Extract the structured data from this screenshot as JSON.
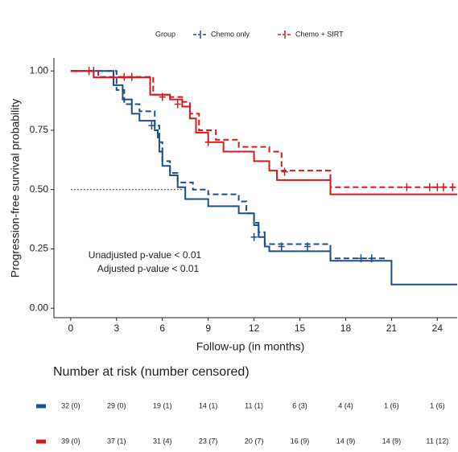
{
  "chart_data": {
    "type": "km",
    "xlabel": "Follow-up (in months)",
    "ylabel": "Progression-free survival probability",
    "legend_title": "Group",
    "xlim": [
      -1.1,
      25.3
    ],
    "ylim": [
      -0.04,
      1.055
    ],
    "xticks": [
      0,
      3,
      6,
      9,
      12,
      15,
      18,
      21,
      24
    ],
    "yticks": [
      {
        "value": 0,
        "label": "0.00"
      },
      {
        "value": 0.25,
        "label": "0.25"
      },
      {
        "value": 0.5,
        "label": "0.50"
      },
      {
        "value": 0.75,
        "label": "0.75"
      },
      {
        "value": 1,
        "label": "1.00"
      }
    ],
    "annotations": [
      "Unadjusted p-value < 0.01",
      "Adjusted p-value < 0.01"
    ],
    "reference_line": {
      "y": 0.5,
      "x": [
        0,
        7.3
      ]
    },
    "series": [
      {
        "name": "Chemo only",
        "color": "#1f4e8c",
        "x": [
          0,
          2.8,
          3.4,
          4,
          4.5,
          5.5,
          5.7,
          5.8,
          6,
          6.5,
          7,
          7.5,
          9,
          11,
          12,
          12.3,
          12.7,
          13,
          17,
          21,
          25.3
        ],
        "values": [
          1,
          0.94,
          0.88,
          0.82,
          0.79,
          0.75,
          0.72,
          0.66,
          0.6,
          0.56,
          0.51,
          0.46,
          0.43,
          0.4,
          0.35,
          0.3,
          0.26,
          0.24,
          0.2,
          0.1,
          0.1
        ],
        "x_dashed": [
          0,
          3,
          3.5,
          4.5,
          5.5,
          5.8,
          6,
          6.5,
          7,
          8,
          9,
          11,
          11.5,
          12,
          12.3,
          12.7,
          17,
          20.6
        ],
        "values_dashed": [
          1,
          0.92,
          0.86,
          0.83,
          0.77,
          0.7,
          0.62,
          0.57,
          0.53,
          0.5,
          0.48,
          0.45,
          0.4,
          0.36,
          0.32,
          0.27,
          0.21,
          0.21
        ],
        "censor_x": [
          1.5,
          5.3,
          12,
          13.8,
          15.5,
          19,
          19.7
        ],
        "censor_values": [
          1,
          0.77,
          0.3,
          0.26,
          0.26,
          0.21,
          0.21
        ]
      },
      {
        "name": "Chemo + SIRT",
        "color": "#d7191c",
        "x": [
          0,
          1.5,
          5.2,
          6.5,
          7.3,
          7.8,
          8.2,
          9,
          10,
          12,
          13,
          13.5,
          17,
          25.3
        ],
        "values": [
          1,
          0.973,
          0.9,
          0.88,
          0.85,
          0.8,
          0.74,
          0.7,
          0.66,
          0.62,
          0.58,
          0.54,
          0.48,
          0.48
        ],
        "x_dashed": [
          0,
          1.8,
          5.4,
          6.5,
          7.3,
          7.8,
          8.4,
          9.5,
          11,
          13,
          13.8,
          17,
          25.3
        ],
        "values_dashed": [
          1,
          0.975,
          0.9,
          0.89,
          0.87,
          0.82,
          0.75,
          0.71,
          0.68,
          0.66,
          0.58,
          0.51,
          0.51
        ],
        "censor_x": [
          1.2,
          3.5,
          4,
          6,
          7,
          9,
          14,
          22,
          23.5,
          24,
          24.4,
          25
        ],
        "censor_values": [
          1,
          0.975,
          0.975,
          0.89,
          0.86,
          0.7,
          0.575,
          0.51,
          0.51,
          0.51,
          0.51,
          0.51
        ]
      }
    ],
    "risk_table": {
      "title": "Number at risk (number censored)",
      "rows": [
        [
          "32 (0)",
          "29 (0)",
          "19 (1)",
          "14 (1)",
          "11 (1)",
          "6 (3)",
          "4 (4)",
          "1 (6)",
          "1 (6)"
        ],
        [
          "39 (0)",
          "37 (1)",
          "31 (4)",
          "23 (7)",
          "20 (7)",
          "16 (9)",
          "14 (9)",
          "14 (9)",
          "11 (12)"
        ]
      ]
    }
  }
}
